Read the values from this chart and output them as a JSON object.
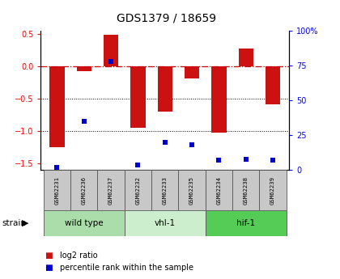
{
  "title": "GDS1379 / 18659",
  "samples": [
    "GSM62231",
    "GSM62236",
    "GSM62237",
    "GSM62232",
    "GSM62233",
    "GSM62235",
    "GSM62234",
    "GSM62238",
    "GSM62239"
  ],
  "log2_ratio": [
    -1.25,
    -0.08,
    0.49,
    -0.95,
    -0.7,
    -0.18,
    -1.02,
    0.27,
    -0.58
  ],
  "percentile_rank": [
    2,
    35,
    78,
    4,
    20,
    18,
    7,
    8,
    7
  ],
  "groups": [
    {
      "label": "wild type",
      "start": 0,
      "end": 3,
      "color": "#aaddaa"
    },
    {
      "label": "vhl-1",
      "start": 3,
      "end": 6,
      "color": "#cceecc"
    },
    {
      "label": "hif-1",
      "start": 6,
      "end": 9,
      "color": "#55cc55"
    }
  ],
  "bar_color": "#cc1111",
  "dot_color": "#0000cc",
  "ylim_left": [
    -1.6,
    0.55
  ],
  "ylim_right": [
    0,
    100
  ],
  "yticks_left": [
    -1.5,
    -1.0,
    -0.5,
    0.0,
    0.5
  ],
  "yticks_right": [
    0,
    25,
    50,
    75,
    100
  ],
  "ytick_labels_right": [
    "0",
    "25",
    "50",
    "75",
    "100%"
  ],
  "dotted_lines": [
    -0.5,
    -1.0
  ],
  "background_color": "#ffffff",
  "plot_bg": "#ffffff",
  "sample_box_color": "#c8c8c8",
  "bar_width": 0.55
}
